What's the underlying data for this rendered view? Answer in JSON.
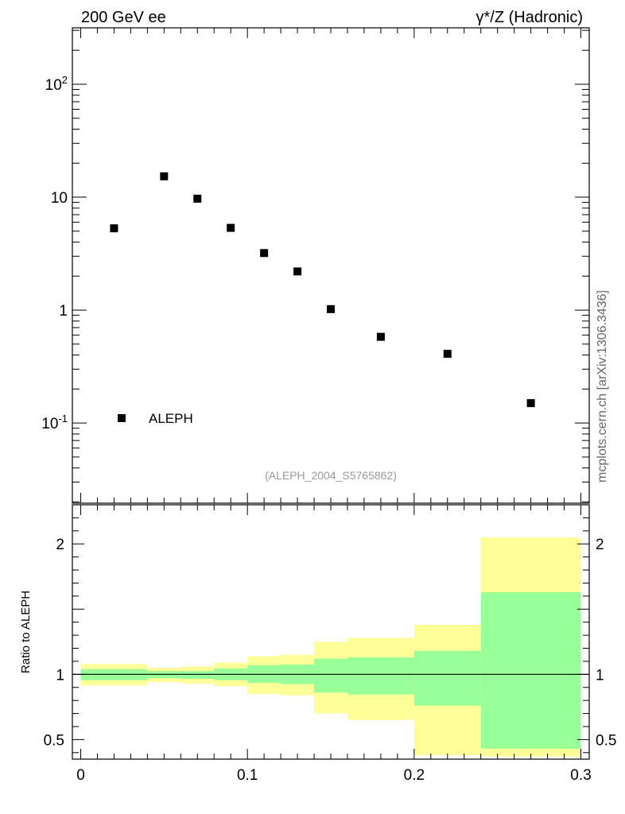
{
  "header": {
    "left_title": "200 GeV ee",
    "right_title": "γ*/Z (Hadronic)"
  },
  "side_label": "mcplots.cern.ch [arXiv:1306.3436]",
  "analysis_label": "(ALEPH_2004_S5765862)",
  "chart_data": [
    {
      "type": "scatter",
      "panel": "main",
      "yscale": "log",
      "xlim": [
        -0.005,
        0.305
      ],
      "ylim": [
        0.0195,
        316
      ],
      "y_tick_labels": [
        "10^-1",
        "1",
        "10",
        "10^2"
      ],
      "legend": {
        "placement": "bottom-left",
        "entries": [
          "ALEPH"
        ]
      },
      "series": [
        {
          "name": "ALEPH",
          "color": "#000000",
          "x": [
            0.02,
            0.05,
            0.07,
            0.09,
            0.11,
            0.13,
            0.15,
            0.18,
            0.22,
            0.27
          ],
          "y": [
            5.3,
            15.3,
            9.7,
            5.35,
            3.2,
            2.2,
            1.02,
            0.58,
            0.41,
            0.15
          ]
        }
      ]
    },
    {
      "type": "area",
      "panel": "ratio",
      "ylabel": "Ratio to ALEPH",
      "xlim": [
        -0.005,
        0.305
      ],
      "ylim": [
        0.35,
        2.3
      ],
      "y_tick_labels": [
        "0.5",
        "1",
        "2"
      ],
      "x_tick_labels": [
        "0",
        "0.1",
        "0.2",
        "0.3"
      ],
      "reference_line": 1,
      "bands": {
        "edges": [
          0,
          0.04,
          0.06,
          0.08,
          0.1,
          0.12,
          0.14,
          0.16,
          0.2,
          0.24,
          0.3
        ],
        "inner": {
          "color": "#99ff99",
          "lo": [
            0.955,
            0.97,
            0.965,
            0.955,
            0.935,
            0.925,
            0.86,
            0.845,
            0.76,
            0.43
          ],
          "hi": [
            1.04,
            1.025,
            1.025,
            1.045,
            1.07,
            1.075,
            1.12,
            1.13,
            1.18,
            1.63
          ]
        },
        "outer": {
          "color": "#ffff99",
          "lo": [
            0.915,
            0.94,
            0.93,
            0.91,
            0.85,
            0.84,
            0.7,
            0.65,
            0.38,
            0.37
          ],
          "hi": [
            1.08,
            1.05,
            1.06,
            1.09,
            1.14,
            1.15,
            1.25,
            1.28,
            1.38,
            2.05
          ]
        }
      }
    }
  ]
}
